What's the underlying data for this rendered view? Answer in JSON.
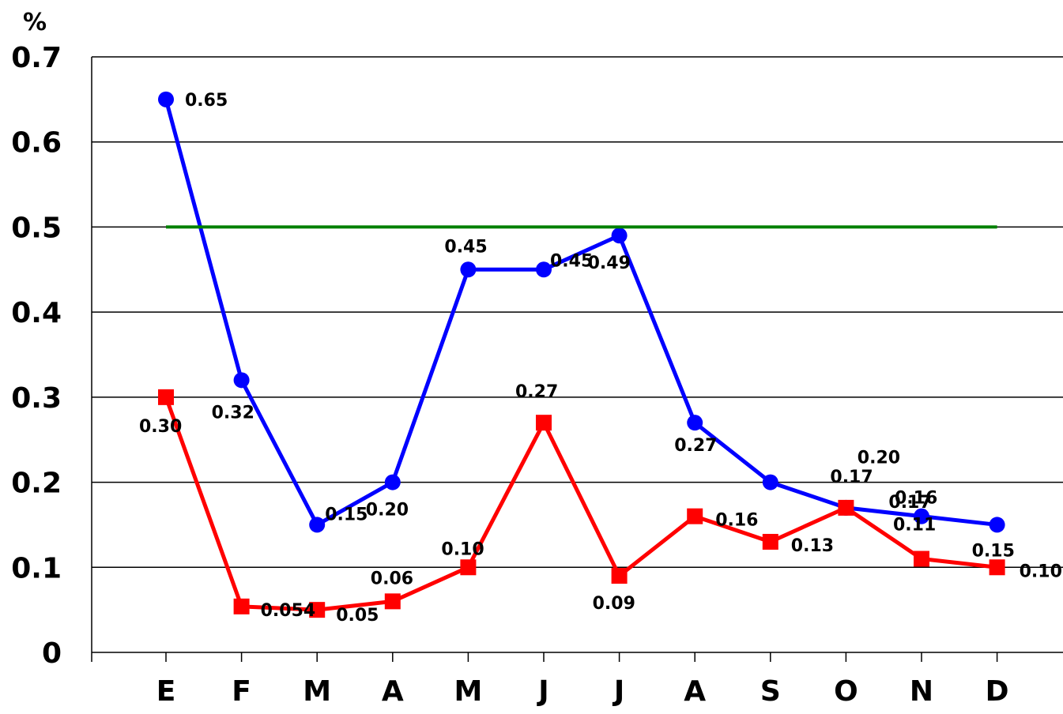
{
  "chart_data": {
    "type": "line",
    "title": "",
    "xlabel": "",
    "ylabel": "%",
    "ylim": [
      0,
      0.7
    ],
    "yticks": [
      "0",
      "0.1",
      "0.2",
      "0.3",
      "0.4",
      "0.5",
      "0.6",
      "0.7"
    ],
    "categories": [
      "E",
      "F",
      "M",
      "A",
      "M",
      "J",
      "J",
      "A",
      "S",
      "O",
      "N",
      "D"
    ],
    "grid": "horizontal",
    "legend": "none",
    "series": [
      {
        "color": "#0000ff",
        "marker": "circle",
        "values": [
          0.65,
          0.32,
          0.15,
          0.2,
          0.45,
          0.45,
          0.49,
          0.27,
          0.2,
          0.17,
          0.16,
          0.15
        ],
        "labels": [
          "0.65",
          "0.32",
          "0.15",
          "0.20",
          "0.45",
          "0.45",
          "0.49",
          "0.27",
          "0.20",
          "0.17",
          "0.16",
          "0.15"
        ]
      },
      {
        "color": "#ff0000",
        "marker": "square",
        "values": [
          0.3,
          0.054,
          0.05,
          0.06,
          0.1,
          0.27,
          0.09,
          0.16,
          0.13,
          0.17,
          0.11,
          0.1
        ],
        "labels": [
          "0.30",
          "0.054",
          "0.05",
          "0.06",
          "0.10",
          "0.27",
          "0.09",
          "0.16",
          "0.13",
          "0.17",
          "0.11",
          "0.10"
        ]
      },
      {
        "color": "#008000",
        "marker": "none",
        "values": [
          0.5,
          0.5,
          0.5,
          0.5,
          0.5,
          0.5,
          0.5,
          0.5,
          0.5,
          0.5,
          0.5,
          0.5
        ]
      }
    ]
  }
}
